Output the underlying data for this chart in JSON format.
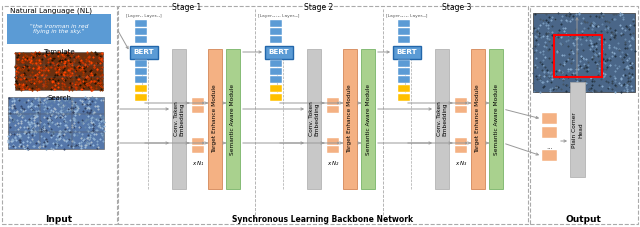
{
  "nl_label": "Natural Language (NL)",
  "nl_text": "\"the ironman in red\nflying in the sky.\"",
  "template_label": "Template",
  "search_label": "Search",
  "input_label": "Input",
  "output_label": "Output",
  "backbone_label": "Synchronous Learning Backbone Network",
  "stage_labels": [
    "Stage 1",
    "Stage 2",
    "Stage 3"
  ],
  "bert_label": "BERT",
  "conv_label": "Conv. Token\nEmbedding",
  "target_label": "Target Enhance Module",
  "semantic_label": "Semantic Aware Module",
  "head_label": "Plain Corner\nHead",
  "layer_ann": [
    "[Layer₁, Layerₙ₁]",
    "[Layerₙ₁₊₁, Layerₙ₂]",
    "[Layerₙ₂₊₁, Layerₙ₃]"
  ],
  "x_labels": [
    "x N₁",
    "x N₂",
    "x N₃"
  ],
  "bert_color": "#5b9bd5",
  "nl_box_color": "#5b9bd5",
  "conv_color": "#c8c8c8",
  "target_color": "#f4b183",
  "semantic_color": "#a9d18e",
  "head_color": "#c8c8c8",
  "blue_block": "#5b9bd5",
  "yellow_block": "#ffc000",
  "orange_block": "#f4b183",
  "arrow_color": "#999999",
  "dash_color": "#aaaaaa"
}
